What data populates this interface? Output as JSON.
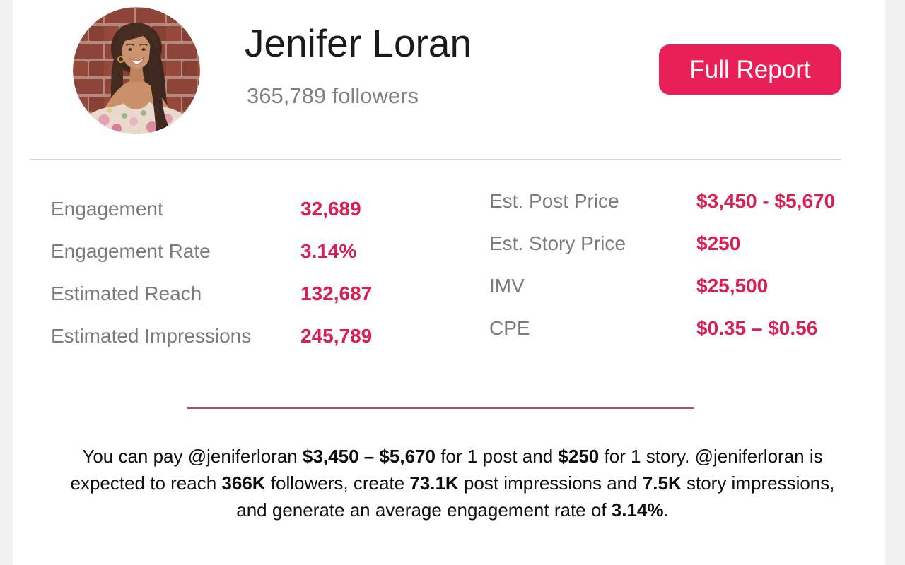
{
  "header": {
    "name": "Jenifer Loran",
    "followers": "365,789 followers",
    "full_report_label": "Full Report"
  },
  "stats": {
    "left": [
      {
        "label": "Engagement",
        "value": "32,689"
      },
      {
        "label": "Engagement Rate",
        "value": "3.14%"
      },
      {
        "label": "Estimated Reach",
        "value": "132,687"
      },
      {
        "label": "Estimated Impressions",
        "value": "245,789"
      }
    ],
    "right": [
      {
        "label": "Est. Post Price",
        "value": "$3,450 - $5,670"
      },
      {
        "label": "Est. Story Price",
        "value": "$250"
      },
      {
        "label": "IMV",
        "value": "$25,500"
      },
      {
        "label": "CPE",
        "value": "$0.35 – $0.56"
      }
    ]
  },
  "summary": {
    "lines": [
      [
        {
          "text": "You can pay @jeniferloran ",
          "bold": false
        },
        {
          "text": "$3,450 – $5,670",
          "bold": true
        },
        {
          "text": " for 1 post and ",
          "bold": false
        },
        {
          "text": "$250",
          "bold": true
        },
        {
          "text": " for 1 story. @jeniferloran is",
          "bold": false
        }
      ],
      [
        {
          "text": "expected to reach ",
          "bold": false
        },
        {
          "text": "366K",
          "bold": true
        },
        {
          "text": " followers, create ",
          "bold": false
        },
        {
          "text": "73.1K",
          "bold": true
        },
        {
          "text": " post impressions and ",
          "bold": false
        },
        {
          "text": "7.5K",
          "bold": true
        },
        {
          "text": " story impressions,",
          "bold": false
        }
      ],
      [
        {
          "text": "and generate an average engagement rate of ",
          "bold": false
        },
        {
          "text": "3.14%",
          "bold": true
        },
        {
          "text": ".",
          "bold": false
        }
      ]
    ]
  },
  "colors": {
    "accent": "#E92057",
    "value_color": "#D81E52",
    "label_gray": "#7B7B7B",
    "divider_gray": "#D7D7D7",
    "divider_rose": "#A5566F",
    "page_margin": "#F1F1F2"
  }
}
